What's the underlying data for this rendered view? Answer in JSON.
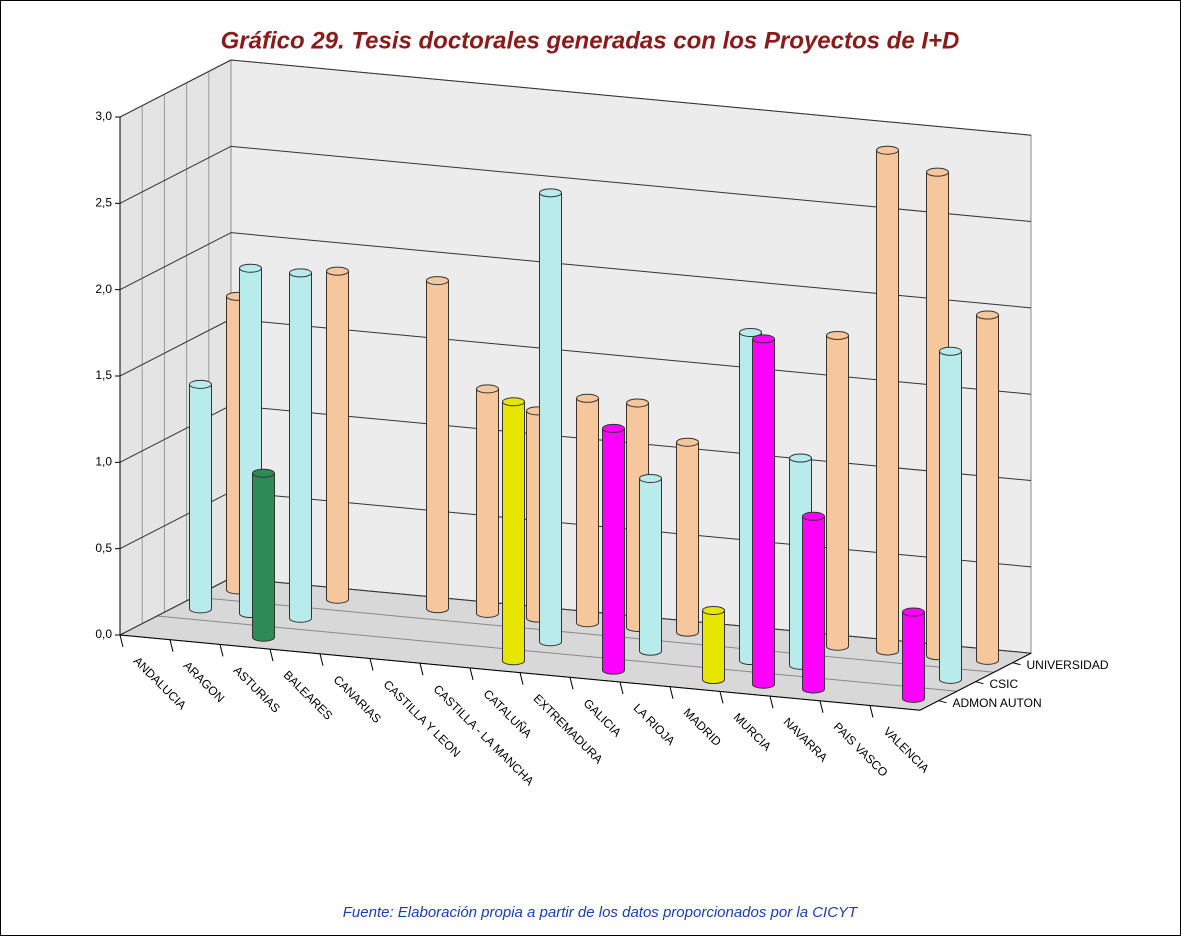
{
  "chart_data": {
    "type": "bar3d",
    "title": "Gráfico 29. Tesis doctorales generadas con los Proyectos de I+D",
    "source": "Fuente: Elaboración propia a partir de los datos proporcionados por la CICYT",
    "categories": [
      "ANDALUCIA",
      "ARAGON",
      "ASTURIAS",
      "BALEARES",
      "CANARIAS",
      "CASTILLA Y LEON",
      "CASTILLA - LA MANCHA",
      "CATALUÑA",
      "EXTREMADURA",
      "GALICIA",
      "LA RIOJA",
      "MADRID",
      "MURCIA",
      "NAVARRA",
      "PAIS VASCO",
      "VALENCIA"
    ],
    "series": [
      {
        "name": "ADMON AUTON",
        "colors": [
          null,
          null,
          "#2e8b57",
          null,
          null,
          null,
          null,
          "#e6e600",
          null,
          "#ff00ff",
          null,
          "#e6e600",
          "#ff00ff",
          "#ff00ff",
          null,
          "#ff00ff"
        ],
        "values": [
          null,
          null,
          0.95,
          null,
          null,
          null,
          null,
          1.5,
          null,
          1.4,
          null,
          0.4,
          2.0,
          1.0,
          null,
          0.5
        ]
      },
      {
        "name": "CSIC",
        "color": "#b8ecec",
        "values": [
          1.3,
          2.0,
          2.0,
          null,
          null,
          null,
          null,
          2.6,
          null,
          1.0,
          null,
          1.9,
          1.2,
          null,
          null,
          1.9
        ]
      },
      {
        "name": "UNIVERSIDAD",
        "color": "#f6c69c",
        "values": [
          1.7,
          null,
          1.9,
          null,
          1.9,
          1.3,
          1.2,
          1.3,
          1.3,
          1.1,
          null,
          null,
          1.8,
          2.9,
          2.8,
          2.0
        ]
      }
    ],
    "ylim": [
      0,
      3
    ],
    "yticks": [
      {
        "value": 0,
        "label": "0,0"
      },
      {
        "value": 0.5,
        "label": "0,5"
      },
      {
        "value": 1,
        "label": "1,0"
      },
      {
        "value": 1.5,
        "label": "1,5"
      },
      {
        "value": 2,
        "label": "2,0"
      },
      {
        "value": 2.5,
        "label": "2,5"
      },
      {
        "value": 3,
        "label": "3,0"
      }
    ],
    "grid": true
  }
}
